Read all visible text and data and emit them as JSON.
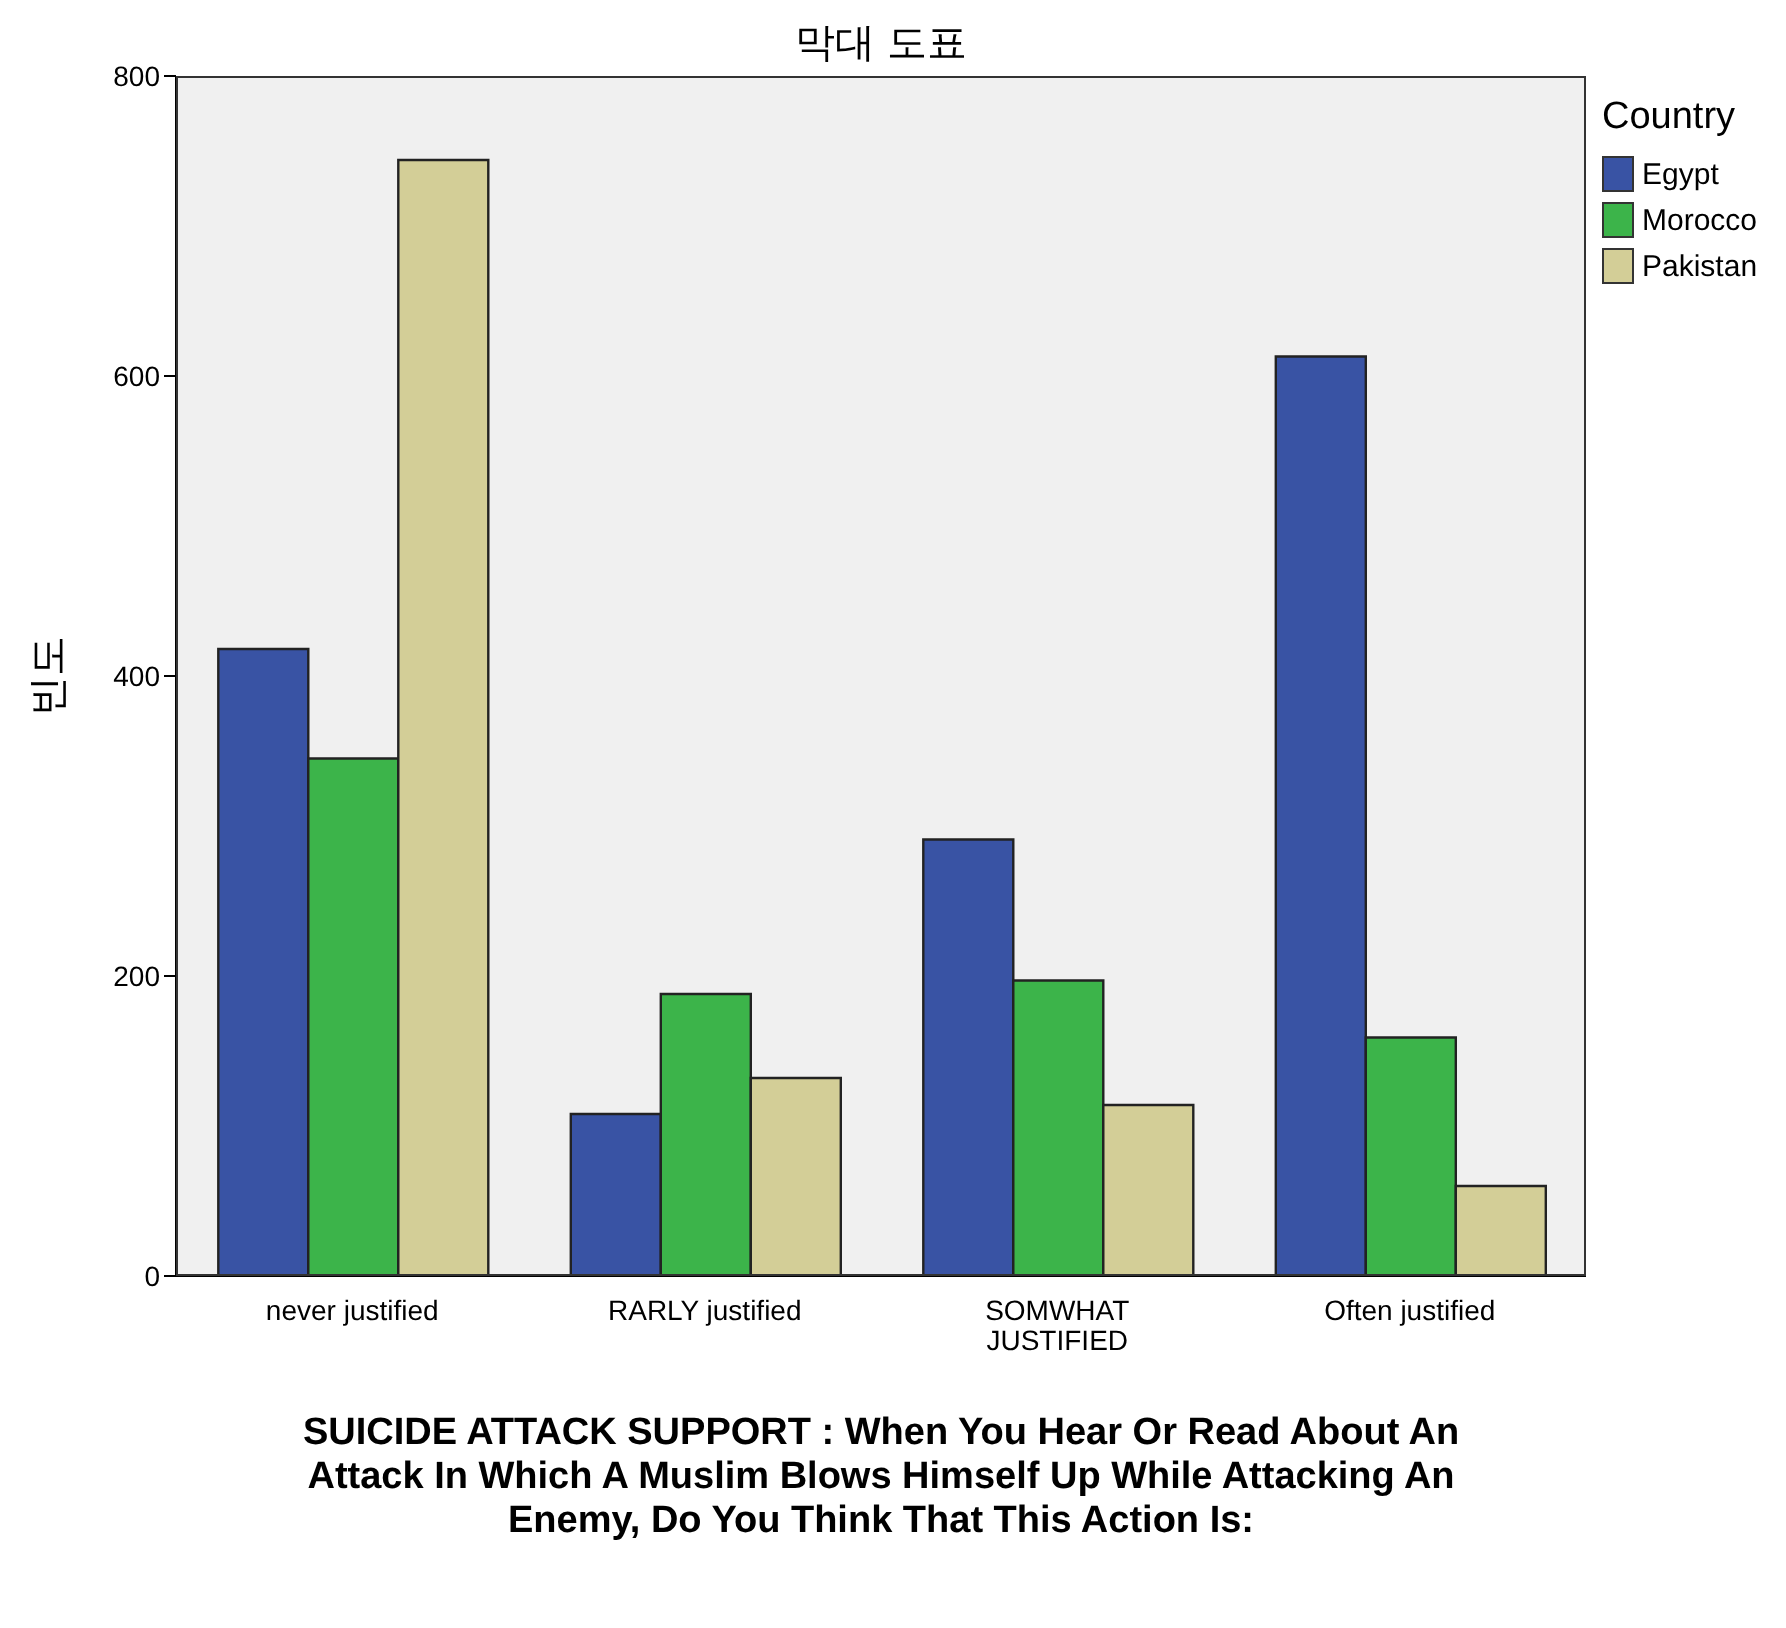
{
  "chart_data": {
    "type": "bar",
    "title": "막대 도표",
    "xlabel": "SUICIDE ATTACK SUPPORT  :  When You Hear Or Read About An Attack In Which A Muslim Blows Himself Up While Attacking An Enemy, Do You Think That This Action Is:",
    "ylabel": "빈도",
    "legend_title": "Country",
    "categories": [
      "never justified",
      "RARLY justified",
      "SOMWHAT JUSTIFIED",
      "Often justified"
    ],
    "series": [
      {
        "name": "Egypt",
        "color": "#3953a4",
        "values": [
          418,
          108,
          291,
          613
        ]
      },
      {
        "name": "Morocco",
        "color": "#3cb44a",
        "values": [
          345,
          188,
          197,
          159
        ]
      },
      {
        "name": "Pakistan",
        "color": "#d3ce97",
        "values": [
          744,
          132,
          114,
          60
        ]
      }
    ],
    "ylim": [
      0,
      800
    ],
    "yticks": [
      0,
      200,
      400,
      600,
      800
    ],
    "grid": false,
    "legend": "right"
  }
}
